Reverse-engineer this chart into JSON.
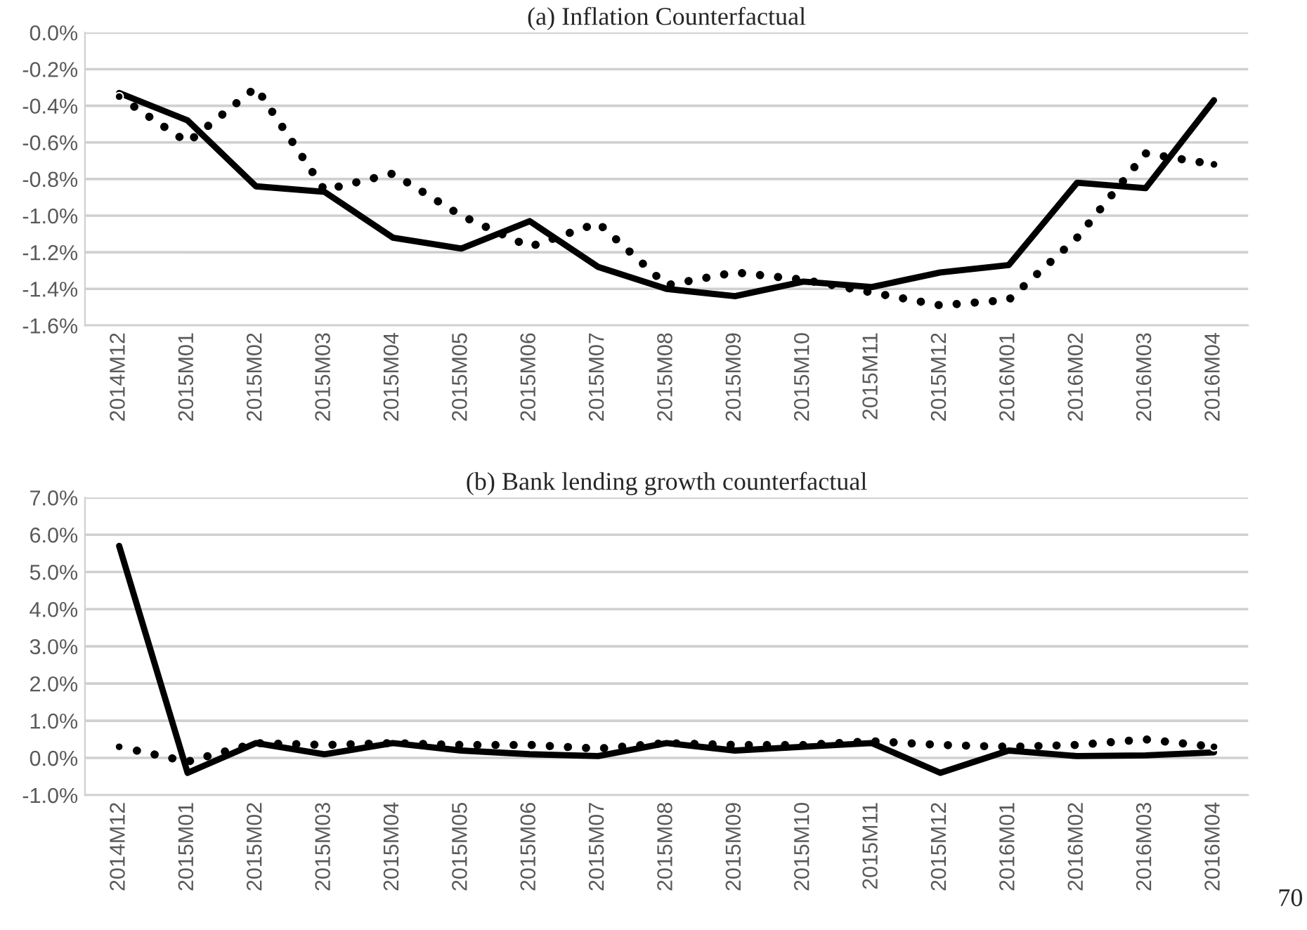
{
  "chart_data": [
    {
      "type": "line",
      "title": "(a) Inflation Counterfactual",
      "categories": [
        "2014M12",
        "2015M01",
        "2015M02",
        "2015M03",
        "2015M04",
        "2015M05",
        "2015M06",
        "2015M07",
        "2015M08",
        "2015M09",
        "2015M10",
        "2015M11",
        "2015M12",
        "2016M01",
        "2016M02",
        "2016M03",
        "2016M04"
      ],
      "series": [
        {
          "color": "#000000",
          "line_style": "solid",
          "values": [
            -0.33,
            -0.48,
            -0.84,
            -0.87,
            -1.12,
            -1.18,
            -1.03,
            -1.28,
            -1.4,
            -1.44,
            -1.36,
            -1.39,
            -1.31,
            -1.27,
            -0.82,
            -0.85,
            -0.37
          ]
        },
        {
          "color": "#000000",
          "line_style": "dotted",
          "values": [
            -0.35,
            -0.6,
            -0.3,
            -0.86,
            -0.77,
            -1.0,
            -1.17,
            -1.04,
            -1.38,
            -1.31,
            -1.35,
            -1.42,
            -1.49,
            -1.46,
            -1.12,
            -0.66,
            -0.72
          ]
        }
      ],
      "ylim": [
        -1.6,
        0.0
      ],
      "yticks": [
        {
          "value": -1.6,
          "label": "-1.6%"
        },
        {
          "value": -1.4,
          "label": "-1.4%"
        },
        {
          "value": -1.2,
          "label": "-1.2%"
        },
        {
          "value": -1.0,
          "label": "-1.0%"
        },
        {
          "value": -0.8,
          "label": "-0.8%"
        },
        {
          "value": -0.6,
          "label": "-0.6%"
        },
        {
          "value": -0.4,
          "label": "-0.4%"
        },
        {
          "value": -0.2,
          "label": "-0.2%"
        },
        {
          "value": 0.0,
          "label": "0.0%"
        }
      ],
      "grid": "y",
      "legend": false
    },
    {
      "type": "line",
      "title": "(b) Bank lending growth counterfactual",
      "categories": [
        "2014M12",
        "2015M01",
        "2015M02",
        "2015M03",
        "2015M04",
        "2015M05",
        "2015M06",
        "2015M07",
        "2015M08",
        "2015M09",
        "2015M10",
        "2015M11",
        "2015M12",
        "2016M01",
        "2016M02",
        "2016M03",
        "2016M04"
      ],
      "series": [
        {
          "color": "#000000",
          "line_style": "solid",
          "values": [
            5.7,
            -0.4,
            0.4,
            0.1,
            0.4,
            0.2,
            0.1,
            0.05,
            0.4,
            0.2,
            0.3,
            0.4,
            -0.4,
            0.2,
            0.05,
            0.07,
            0.15
          ]
        },
        {
          "color": "#000000",
          "line_style": "dotted",
          "values": [
            0.3,
            -0.1,
            0.4,
            0.35,
            0.4,
            0.35,
            0.35,
            0.25,
            0.4,
            0.35,
            0.35,
            0.45,
            0.35,
            0.3,
            0.35,
            0.5,
            0.3
          ]
        }
      ],
      "ylim": [
        -1.0,
        7.0
      ],
      "yticks": [
        {
          "value": -1.0,
          "label": "-1.0%"
        },
        {
          "value": 0.0,
          "label": "0.0%"
        },
        {
          "value": 1.0,
          "label": "1.0%"
        },
        {
          "value": 2.0,
          "label": "2.0%"
        },
        {
          "value": 3.0,
          "label": "3.0%"
        },
        {
          "value": 4.0,
          "label": "4.0%"
        },
        {
          "value": 5.0,
          "label": "5.0%"
        },
        {
          "value": 6.0,
          "label": "6.0%"
        },
        {
          "value": 7.0,
          "label": "7.0%"
        }
      ],
      "grid": "y",
      "legend": false,
      "annotations": [
        "70"
      ]
    }
  ]
}
